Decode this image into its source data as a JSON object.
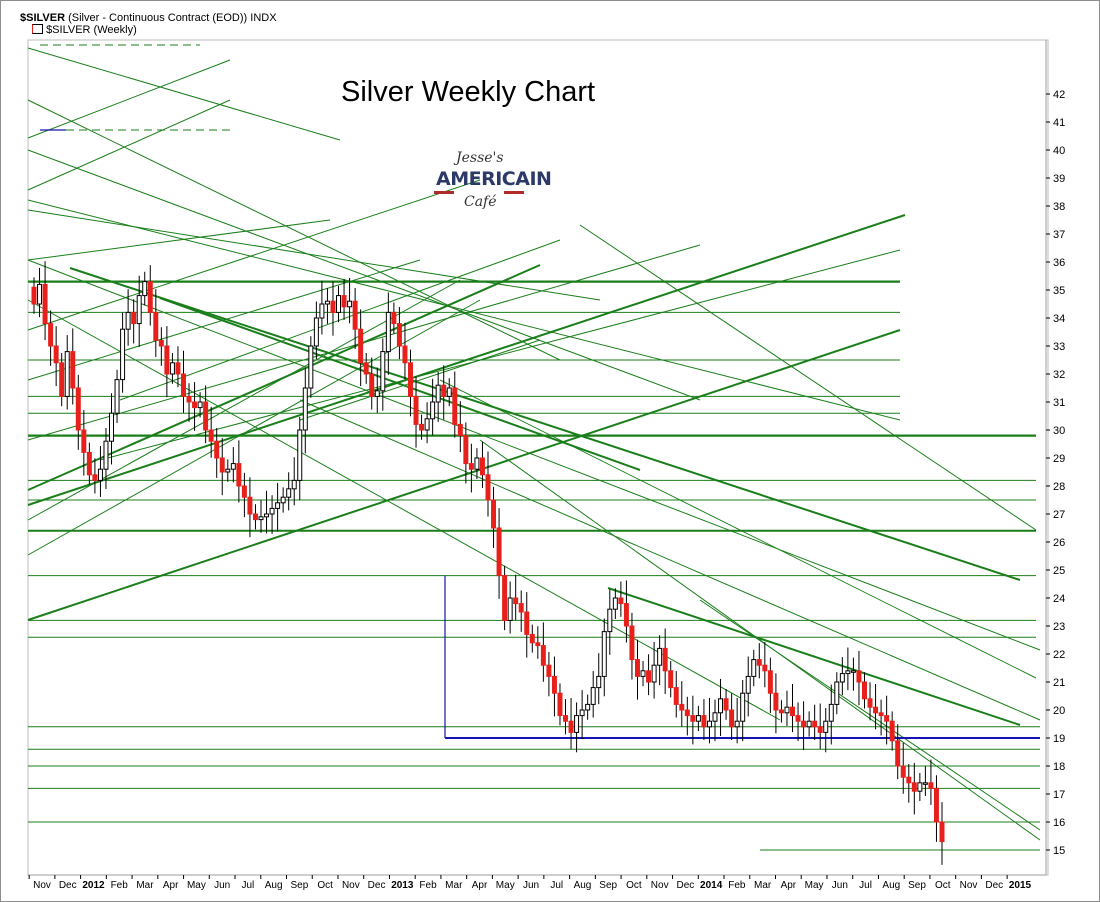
{
  "header": {
    "symbol": "$SILVER",
    "description": "(Silver - Continuous Contract (EOD))",
    "exchange": "INDX",
    "legend_icon": "candlestick-legend-icon",
    "legend_label": "$SILVER (Weekly)"
  },
  "logo": {
    "line1": "Jesse's",
    "line2": "AMERICAIN",
    "line3": "Café"
  },
  "colors": {
    "up_candle": "#ffffff",
    "down_candle": "#e8201c",
    "wick": "#000000",
    "trendline": "#1a7f1a",
    "support_line": "#1414b4",
    "grid_line": "#1a8a1a"
  },
  "chart_data": {
    "type": "candlestick",
    "title": "Silver Weekly Chart",
    "xlabel": "",
    "ylabel": "",
    "ylim": [
      14.5,
      42.8
    ],
    "y_ticks": [
      15,
      16,
      17,
      18,
      19,
      20,
      21,
      22,
      23,
      24,
      25,
      26,
      27,
      28,
      29,
      30,
      31,
      32,
      33,
      34,
      35,
      36,
      37,
      38,
      39,
      40,
      41,
      42
    ],
    "x_ticks": [
      "Nov",
      "Dec",
      "2012",
      "Feb",
      "Mar",
      "Apr",
      "May",
      "Jun",
      "Jul",
      "Aug",
      "Sep",
      "Oct",
      "Nov",
      "Dec",
      "2013",
      "Feb",
      "Mar",
      "Apr",
      "May",
      "Jun",
      "Jul",
      "Aug",
      "Sep",
      "Oct",
      "Nov",
      "Dec",
      "2014",
      "Feb",
      "Mar",
      "Apr",
      "May",
      "Jun",
      "Jul",
      "Aug",
      "Sep",
      "Oct",
      "Nov",
      "Dec",
      "2015"
    ],
    "bold_ticks": [
      "2012",
      "2013",
      "2014",
      "2015"
    ],
    "grid": false,
    "support_level": 19.0,
    "weekly_closes": [
      34.5,
      35.2,
      33.8,
      33.0,
      32.4,
      31.2,
      32.8,
      31.5,
      30.0,
      29.2,
      28.4,
      28.2,
      28.6,
      29.6,
      30.6,
      31.8,
      33.6,
      34.2,
      33.8,
      34.8,
      35.3,
      34.2,
      33.2,
      33.0,
      32.0,
      32.4,
      32.0,
      31.2,
      31.0,
      30.8,
      31.0,
      30.0,
      29.6,
      29.0,
      28.5,
      28.6,
      28.8,
      28.0,
      27.6,
      27.0,
      26.8,
      26.9,
      27.0,
      27.2,
      27.4,
      27.6,
      27.9,
      28.2,
      30.0,
      31.5,
      33.0,
      34.0,
      34.5,
      34.6,
      34.2,
      34.8,
      34.4,
      34.6,
      33.6,
      32.4,
      32.0,
      31.2,
      31.4,
      32.8,
      34.2,
      33.8,
      33.0,
      32.4,
      31.2,
      30.2,
      30.0,
      30.4,
      31.0,
      31.6,
      31.2,
      31.5,
      30.2,
      29.8,
      28.8,
      28.6,
      29.0,
      28.4,
      27.5,
      26.5,
      24.8,
      23.2,
      24.0,
      23.8,
      23.5,
      22.7,
      22.4,
      22.3,
      21.6,
      21.2,
      20.6,
      19.8,
      19.6,
      19.2,
      19.8,
      20.0,
      20.2,
      20.8,
      21.2,
      22.8,
      23.6,
      24.0,
      23.8,
      23.0,
      21.8,
      21.2,
      21.4,
      21.0,
      21.6,
      22.2,
      21.4,
      20.8,
      20.2,
      20.0,
      19.8,
      19.6,
      19.8,
      19.4,
      19.6,
      19.9,
      20.4,
      20.0,
      19.4,
      19.6,
      20.6,
      21.2,
      21.8,
      21.6,
      21.4,
      20.6,
      20.0,
      19.9,
      20.1,
      19.8,
      19.6,
      19.4,
      19.6,
      19.4,
      19.2,
      19.6,
      20.2,
      21.0,
      21.3,
      21.4,
      21.4,
      21.0,
      20.4,
      20.1,
      19.9,
      19.8,
      19.6,
      18.9,
      18.0,
      17.6,
      17.4,
      17.1,
      17.4,
      17.4,
      17.2,
      16.0,
      15.3
    ]
  }
}
